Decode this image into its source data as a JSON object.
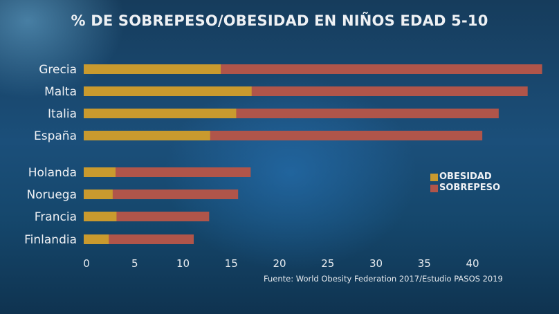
{
  "chart_data": {
    "type": "bar",
    "orientation": "horizontal",
    "stacked": "overlay",
    "title": "% DE SOBREPESO/OBESIDAD EN NIÑOS EDAD 5-10",
    "xlabel": "",
    "ylabel": "",
    "xlim": [
      0,
      45
    ],
    "xticks": [
      "0",
      "5",
      "10",
      "15",
      "20",
      "25",
      "30",
      "35",
      "40"
    ],
    "categories": [
      "Grecia",
      "Malta",
      "Italia",
      "España",
      "Holanda",
      "Noruega",
      "Francia",
      "Finlandia"
    ],
    "series": [
      {
        "name": "OBESIDAD",
        "color": "#c99a2e",
        "values": [
          14.2,
          17.4,
          15.8,
          13.1,
          3.3,
          3.0,
          3.4,
          2.6
        ]
      },
      {
        "name": "SOBREPESO",
        "color": "#b0554a",
        "values": [
          47.5,
          46.0,
          43.0,
          41.3,
          17.3,
          16.0,
          13.0,
          11.4
        ]
      }
    ],
    "legend_position": "right-middle",
    "grid": false,
    "source": "Fuente: World Obesity Federation 2017/Estudio PASOS 2019"
  }
}
